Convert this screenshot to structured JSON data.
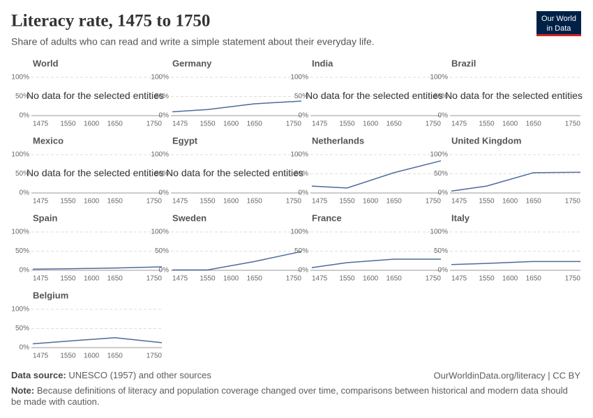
{
  "header": {
    "title": "Literacy rate, 1475 to 1750",
    "subtitle": "Share of adults who can read and write a simple statement about their everyday life.",
    "logo": [
      "Our World",
      "in Data"
    ]
  },
  "chart_data": [
    {
      "type": "line",
      "title": "World",
      "message": "No data for the selected entities",
      "xlim": [
        1475,
        1750
      ],
      "xticks": [
        1475,
        1550,
        1600,
        1650,
        1750
      ],
      "ylim": [
        0,
        100
      ],
      "yticks": [
        {
          "value": 0,
          "label": "0%"
        },
        {
          "value": 50,
          "label": "50%"
        },
        {
          "value": 100,
          "label": "100%"
        }
      ]
    },
    {
      "type": "line",
      "title": "Germany",
      "color": "#4c6a9c",
      "x": [
        1475,
        1550,
        1650,
        1750
      ],
      "values": [
        10,
        16,
        31,
        38
      ],
      "xlim": [
        1475,
        1750
      ],
      "xticks": [
        1475,
        1550,
        1600,
        1650,
        1750
      ],
      "ylim": [
        0,
        100
      ],
      "yticks": [
        {
          "value": 0,
          "label": "0%"
        },
        {
          "value": 50,
          "label": "50%"
        },
        {
          "value": 100,
          "label": "100%"
        }
      ]
    },
    {
      "type": "line",
      "title": "India",
      "message": "No data for the selected entities",
      "xlim": [
        1475,
        1750
      ],
      "xticks": [
        1475,
        1550,
        1600,
        1650,
        1750
      ],
      "ylim": [
        0,
        100
      ],
      "yticks": [
        {
          "value": 0,
          "label": "0%"
        },
        {
          "value": 50,
          "label": "50%"
        },
        {
          "value": 100,
          "label": "100%"
        }
      ]
    },
    {
      "type": "line",
      "title": "Brazil",
      "message": "No data for the selected entities",
      "xlim": [
        1475,
        1750
      ],
      "xticks": [
        1475,
        1550,
        1600,
        1650,
        1750
      ],
      "ylim": [
        0,
        100
      ],
      "yticks": [
        {
          "value": 0,
          "label": "0%"
        },
        {
          "value": 50,
          "label": "50%"
        },
        {
          "value": 100,
          "label": "100%"
        }
      ]
    },
    {
      "type": "line",
      "title": "Mexico",
      "message": "No data for the selected entities",
      "xlim": [
        1475,
        1750
      ],
      "xticks": [
        1475,
        1550,
        1600,
        1650,
        1750
      ],
      "ylim": [
        0,
        100
      ],
      "yticks": [
        {
          "value": 0,
          "label": "0%"
        },
        {
          "value": 50,
          "label": "50%"
        },
        {
          "value": 100,
          "label": "100%"
        }
      ]
    },
    {
      "type": "line",
      "title": "Egypt",
      "message": "No data for the selected entities",
      "xlim": [
        1475,
        1750
      ],
      "xticks": [
        1475,
        1550,
        1600,
        1650,
        1750
      ],
      "ylim": [
        0,
        100
      ],
      "yticks": [
        {
          "value": 0,
          "label": "0%"
        },
        {
          "value": 50,
          "label": "50%"
        },
        {
          "value": 100,
          "label": "100%"
        }
      ]
    },
    {
      "type": "line",
      "title": "Netherlands",
      "color": "#4c6a9c",
      "x": [
        1475,
        1550,
        1650,
        1750
      ],
      "values": [
        18,
        13,
        53,
        84
      ],
      "xlim": [
        1475,
        1750
      ],
      "xticks": [
        1475,
        1550,
        1600,
        1650,
        1750
      ],
      "ylim": [
        0,
        100
      ],
      "yticks": [
        {
          "value": 0,
          "label": "0%"
        },
        {
          "value": 50,
          "label": "50%"
        },
        {
          "value": 100,
          "label": "100%"
        }
      ]
    },
    {
      "type": "line",
      "title": "United Kingdom",
      "color": "#4c6a9c",
      "x": [
        1475,
        1550,
        1650,
        1750
      ],
      "values": [
        5,
        18,
        53,
        54
      ],
      "xlim": [
        1475,
        1750
      ],
      "xticks": [
        1475,
        1550,
        1600,
        1650,
        1750
      ],
      "ylim": [
        0,
        100
      ],
      "yticks": [
        {
          "value": 0,
          "label": "0%"
        },
        {
          "value": 50,
          "label": "50%"
        },
        {
          "value": 100,
          "label": "100%"
        }
      ]
    },
    {
      "type": "line",
      "title": "Spain",
      "color": "#4c6a9c",
      "x": [
        1475,
        1550,
        1650,
        1750
      ],
      "values": [
        3,
        4,
        6,
        9
      ],
      "xlim": [
        1475,
        1750
      ],
      "xticks": [
        1475,
        1550,
        1600,
        1650,
        1750
      ],
      "ylim": [
        0,
        100
      ],
      "yticks": [
        {
          "value": 0,
          "label": "0%"
        },
        {
          "value": 50,
          "label": "50%"
        },
        {
          "value": 100,
          "label": "100%"
        }
      ]
    },
    {
      "type": "line",
      "title": "Sweden",
      "color": "#4c6a9c",
      "x": [
        1475,
        1550,
        1650,
        1750
      ],
      "values": [
        1,
        1,
        23,
        49
      ],
      "xlim": [
        1475,
        1750
      ],
      "xticks": [
        1475,
        1550,
        1600,
        1650,
        1750
      ],
      "ylim": [
        0,
        100
      ],
      "yticks": [
        {
          "value": 0,
          "label": "0%"
        },
        {
          "value": 50,
          "label": "50%"
        },
        {
          "value": 100,
          "label": "100%"
        }
      ]
    },
    {
      "type": "line",
      "title": "France",
      "color": "#4c6a9c",
      "x": [
        1475,
        1550,
        1650,
        1750
      ],
      "values": [
        7,
        20,
        29,
        29
      ],
      "xlim": [
        1475,
        1750
      ],
      "xticks": [
        1475,
        1550,
        1600,
        1650,
        1750
      ],
      "ylim": [
        0,
        100
      ],
      "yticks": [
        {
          "value": 0,
          "label": "0%"
        },
        {
          "value": 50,
          "label": "50%"
        },
        {
          "value": 100,
          "label": "100%"
        }
      ]
    },
    {
      "type": "line",
      "title": "Italy",
      "color": "#4c6a9c",
      "x": [
        1475,
        1550,
        1650,
        1750
      ],
      "values": [
        15,
        18,
        23,
        23
      ],
      "xlim": [
        1475,
        1750
      ],
      "xticks": [
        1475,
        1550,
        1600,
        1650,
        1750
      ],
      "ylim": [
        0,
        100
      ],
      "yticks": [
        {
          "value": 0,
          "label": "0%"
        },
        {
          "value": 50,
          "label": "50%"
        },
        {
          "value": 100,
          "label": "100%"
        }
      ]
    },
    {
      "type": "line",
      "title": "Belgium",
      "color": "#4c6a9c",
      "x": [
        1475,
        1550,
        1650,
        1750
      ],
      "values": [
        10,
        17,
        26,
        13
      ],
      "xlim": [
        1475,
        1750
      ],
      "xticks": [
        1475,
        1550,
        1600,
        1650,
        1750
      ],
      "ylim": [
        0,
        100
      ],
      "yticks": [
        {
          "value": 0,
          "label": "0%"
        },
        {
          "value": 50,
          "label": "50%"
        },
        {
          "value": 100,
          "label": "100%"
        }
      ]
    }
  ],
  "footer": {
    "source_label": "Data source:",
    "source": "UNESCO (1957) and other sources",
    "url": "OurWorldinData.org/literacy | CC BY",
    "note_label": "Note:",
    "note": "Because definitions of literacy and population coverage changed over time, comparisons between historical and modern data should be made with caution."
  }
}
